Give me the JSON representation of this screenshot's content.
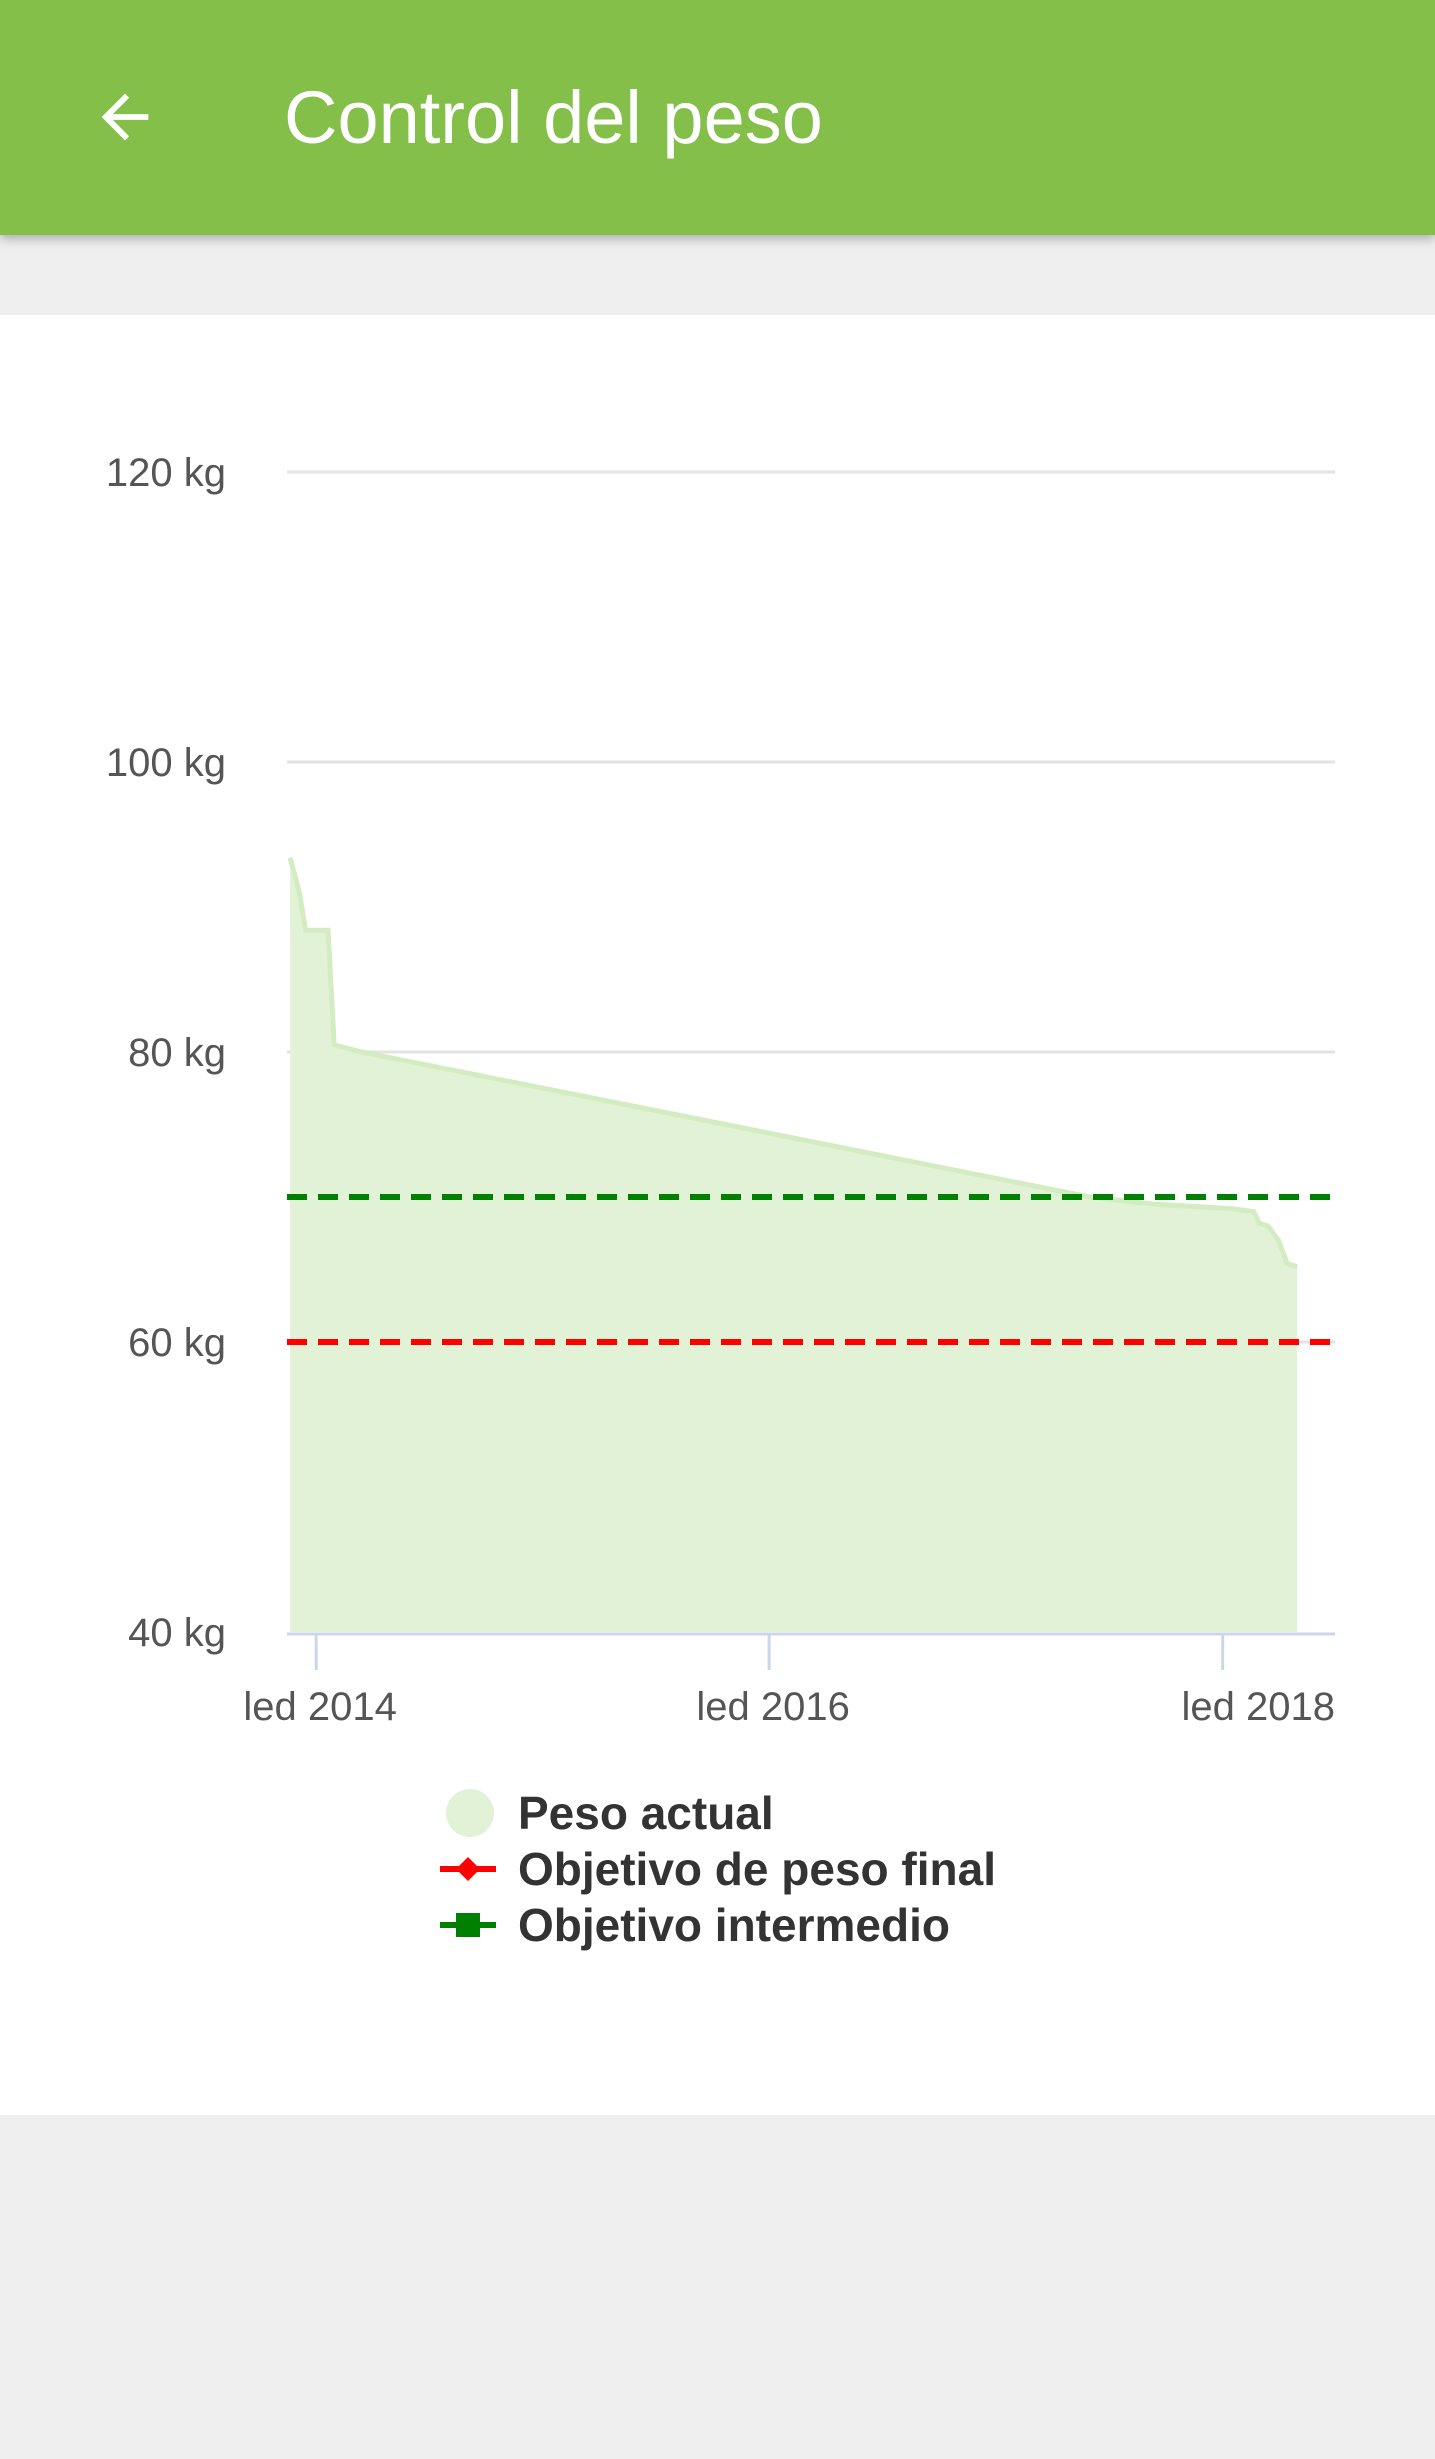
{
  "header": {
    "title": "Control del peso",
    "bg_color": "#83bf49",
    "back_icon": "arrow-left-icon"
  },
  "chart_data": {
    "type": "area",
    "x_unit": "date",
    "y_unit": "kg",
    "ylim": [
      40,
      120
    ],
    "y_ticks": [
      "120 kg",
      "100 kg",
      "80 kg",
      "60 kg",
      "40 kg"
    ],
    "y_tick_values": [
      120,
      100,
      80,
      60,
      40
    ],
    "x_ticks": [
      "led 2014",
      "led 2016",
      "led 2018"
    ],
    "x_tick_dates": [
      "2014-01-01",
      "2016-01-01",
      "2018-01-01"
    ],
    "xlim": [
      "2013-11-15",
      "2018-07-01"
    ],
    "grid": true,
    "series": [
      {
        "name": "Peso actual",
        "kind": "area",
        "color": "#e2f2d6",
        "stroke": "#d4ecc2",
        "points": [
          {
            "x": "2013-11-20",
            "y": 93.4
          },
          {
            "x": "2013-12-05",
            "y": 91.0
          },
          {
            "x": "2013-12-15",
            "y": 88.4
          },
          {
            "x": "2014-01-20",
            "y": 88.4
          },
          {
            "x": "2014-01-30",
            "y": 80.5
          },
          {
            "x": "2014-03-15",
            "y": 80.0
          },
          {
            "x": "2017-06-01",
            "y": 70.0
          },
          {
            "x": "2017-09-15",
            "y": 69.5
          },
          {
            "x": "2018-01-15",
            "y": 69.2
          },
          {
            "x": "2018-02-20",
            "y": 69.0
          },
          {
            "x": "2018-03-01",
            "y": 68.2
          },
          {
            "x": "2018-03-15",
            "y": 68.0
          },
          {
            "x": "2018-04-01",
            "y": 67.0
          },
          {
            "x": "2018-04-15",
            "y": 65.4
          },
          {
            "x": "2018-05-01",
            "y": 65.2
          }
        ]
      },
      {
        "name": "Objetivo de peso final",
        "kind": "dashed-line",
        "marker": "diamond",
        "color": "#ff0000",
        "y": 60
      },
      {
        "name": "Objetivo intermedio",
        "kind": "dashed-line",
        "marker": "square",
        "color": "#008000",
        "y": 70
      }
    ]
  },
  "legend": [
    {
      "label": "Peso actual",
      "marker": "circle",
      "color": "#e2f2d6"
    },
    {
      "label": "Objetivo de peso final",
      "marker": "diamond",
      "color": "#ff0000"
    },
    {
      "label": "Objetivo intermedio",
      "marker": "square",
      "color": "#008000"
    }
  ]
}
